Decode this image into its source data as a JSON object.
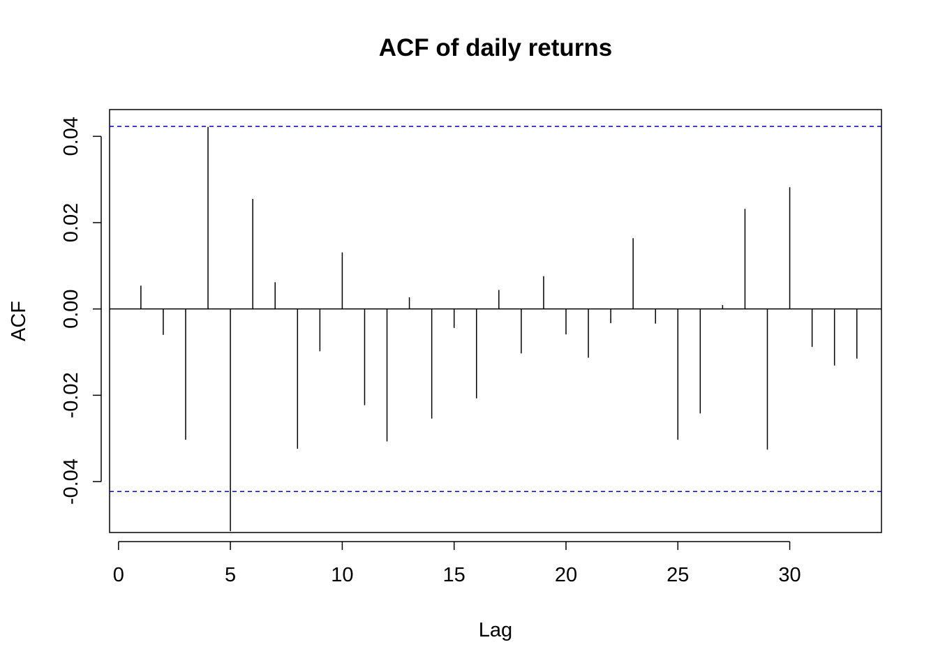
{
  "chart_data": {
    "type": "bar",
    "title": "ACF of daily returns",
    "xlabel": "Lag",
    "ylabel": "ACF",
    "xlim": [
      -0.4,
      34.1
    ],
    "ylim": [
      -0.0518,
      0.0462
    ],
    "xticks": [
      0,
      5,
      10,
      15,
      20,
      25,
      30
    ],
    "yticks": [
      -0.04,
      -0.02,
      0.0,
      0.02,
      0.04
    ],
    "ytick_labels": [
      "-0.04",
      "-0.02",
      "0.00",
      "0.02",
      "0.04"
    ],
    "confidence_bounds": [
      0.0423,
      -0.0423
    ],
    "colors": {
      "bars": "#000000",
      "bounds": "#0000cc",
      "zero_line": "#000000"
    },
    "lags": [
      1,
      2,
      3,
      4,
      5,
      6,
      7,
      8,
      9,
      10,
      11,
      12,
      13,
      14,
      15,
      16,
      17,
      18,
      19,
      20,
      21,
      22,
      23,
      24,
      25,
      26,
      27,
      28,
      29,
      30,
      31,
      32,
      33
    ],
    "acf": [
      0.0054,
      -0.006,
      -0.0303,
      0.0422,
      -0.0515,
      0.0255,
      0.0062,
      -0.0324,
      -0.0098,
      0.0131,
      -0.0223,
      -0.0307,
      0.0027,
      -0.0254,
      -0.0044,
      -0.0207,
      0.0044,
      -0.0103,
      0.0076,
      -0.0059,
      -0.0113,
      -0.0033,
      0.0164,
      -0.0034,
      -0.0303,
      -0.0242,
      0.0009,
      0.0232,
      -0.0326,
      0.0282,
      -0.0088,
      -0.0131,
      -0.0115
    ]
  }
}
